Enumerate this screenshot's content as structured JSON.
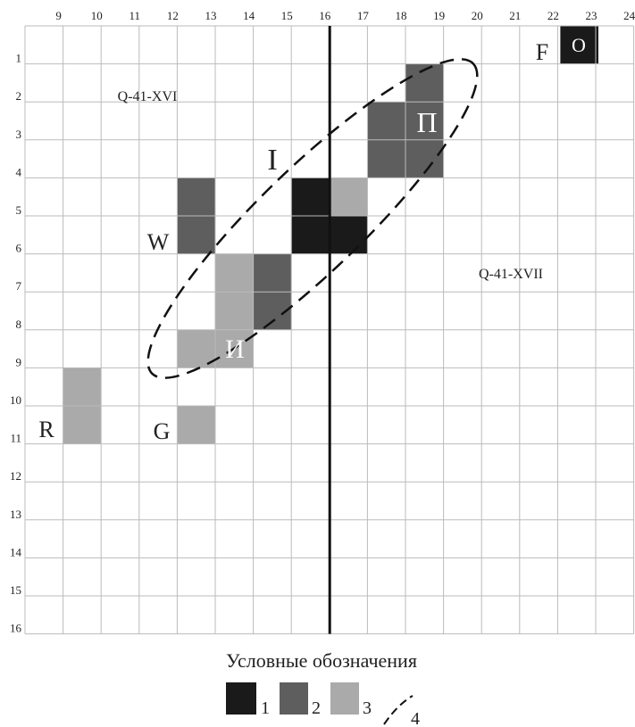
{
  "col_labels": [
    "9",
    "10",
    "11",
    "12",
    "13",
    "14",
    "15",
    "16",
    "17",
    "18",
    "19",
    "20",
    "21",
    "22",
    "23",
    "24"
  ],
  "row_labels": [
    "1",
    "2",
    "3",
    "4",
    "5",
    "6",
    "7",
    "8",
    "9",
    "10",
    "11",
    "12",
    "13",
    "14",
    "15",
    "16"
  ],
  "sheets": [
    "Q-41-XVI",
    "Q-41-XVII"
  ],
  "letters": {
    "o": "O",
    "p": "П",
    "i": "И",
    "roman": "I",
    "w": "W",
    "r": "R",
    "g": "G",
    "f": "F"
  },
  "legend": {
    "title": "Условные обозначения",
    "items": [
      "1",
      "2",
      "3",
      "4"
    ]
  }
}
